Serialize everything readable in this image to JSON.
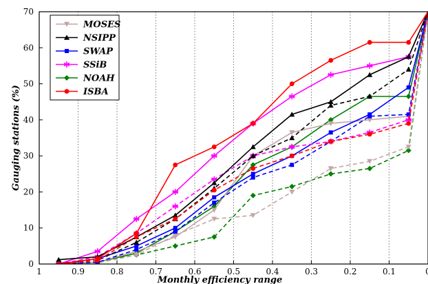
{
  "chart_data": {
    "type": "line",
    "xlabel": "Monthly efficiency range",
    "ylabel": "Gauging stations (%)",
    "xlim": [
      1,
      0
    ],
    "ylim": [
      0,
      70
    ],
    "x_reversed": true,
    "x_ticks": [
      "1",
      "0.9",
      "0.8",
      "0.7",
      "0.6",
      "0.5",
      "0.4",
      "0.3",
      "0.2",
      "0.1",
      "0"
    ],
    "y_ticks": [
      "0",
      "10",
      "20",
      "30",
      "40",
      "50",
      "60",
      "70"
    ],
    "x": [
      0.95,
      0.85,
      0.75,
      0.65,
      0.55,
      0.45,
      0.35,
      0.25,
      0.15,
      0.05,
      0
    ],
    "grid": "vertical dotted",
    "legend_position": "top-left",
    "series": [
      {
        "name": "MOSES",
        "color": "#c4a5a5",
        "marker": "triangle-down",
        "solid": [
          0.3,
          0.5,
          3.5,
          7.5,
          15.0,
          30.0,
          36.5,
          39.0,
          40.0,
          41.0,
          70.0
        ],
        "dashed": [
          0.0,
          0.3,
          2.5,
          8.0,
          12.5,
          13.5,
          20.0,
          26.5,
          28.5,
          32.5,
          70.0
        ]
      },
      {
        "name": "NSIPP",
        "color": "#000000",
        "marker": "triangle-up",
        "solid": [
          1.2,
          2.0,
          7.5,
          13.5,
          22.5,
          32.5,
          41.5,
          45.0,
          52.5,
          57.5,
          70.0
        ],
        "dashed": [
          0.2,
          1.0,
          6.0,
          12.5,
          21.0,
          30.0,
          35.0,
          44.0,
          46.5,
          54.0,
          70.0
        ]
      },
      {
        "name": "SWAP",
        "color": "#0000ff",
        "marker": "square",
        "solid": [
          0.0,
          1.5,
          5.0,
          10.0,
          18.5,
          25.0,
          30.0,
          36.5,
          41.5,
          49.0,
          70.0
        ],
        "dashed": [
          0.0,
          0.5,
          4.0,
          9.0,
          17.0,
          24.0,
          27.5,
          34.0,
          41.0,
          41.5,
          70.0
        ]
      },
      {
        "name": "SSiB",
        "color": "#ff00ff",
        "marker": "asterisk",
        "solid": [
          0.0,
          3.5,
          12.5,
          20.0,
          30.0,
          39.0,
          46.5,
          52.5,
          55.0,
          57.5,
          70.0
        ],
        "dashed": [
          0.0,
          2.0,
          8.5,
          16.0,
          23.5,
          30.0,
          32.5,
          34.0,
          36.5,
          40.0,
          70.0
        ]
      },
      {
        "name": "NOAH",
        "color": "#008000",
        "marker": "diamond",
        "solid": [
          0.0,
          0.5,
          3.0,
          9.0,
          16.0,
          27.5,
          32.5,
          40.0,
          46.5,
          46.5,
          70.0
        ],
        "dashed": [
          0.0,
          0.5,
          2.5,
          5.0,
          7.5,
          19.0,
          21.5,
          25.0,
          26.5,
          31.5,
          70.0
        ]
      },
      {
        "name": "ISBA",
        "color": "#ff0000",
        "marker": "circle",
        "solid": [
          0.0,
          1.5,
          8.5,
          27.5,
          32.5,
          39.0,
          50.0,
          56.5,
          61.5,
          61.5,
          70.0
        ],
        "dashed": [
          0.0,
          1.0,
          7.5,
          12.5,
          20.5,
          26.5,
          30.0,
          34.0,
          36.0,
          39.0,
          70.0
        ]
      }
    ]
  }
}
